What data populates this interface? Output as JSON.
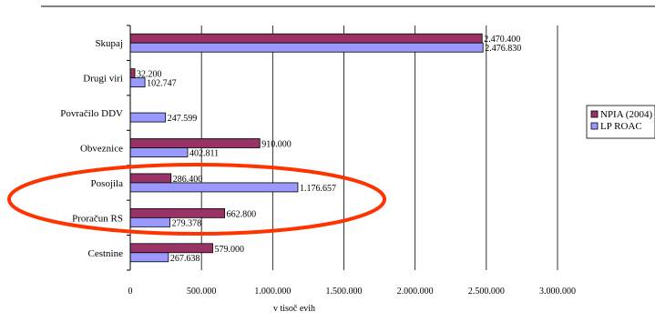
{
  "chart_data": {
    "type": "bar",
    "orientation": "horizontal",
    "categories": [
      "Skupaj",
      "Drugi viri",
      "Povračilo DDV",
      "Obveznice",
      "Posojila",
      "Proračun RS",
      "Cestnine"
    ],
    "series": [
      {
        "name": "NPIA (2004)",
        "color": "#993366",
        "values": [
          2470400,
          32200,
          null,
          910000,
          286400,
          662800,
          579000
        ],
        "labels": [
          "2.470.400",
          "32.200",
          "",
          "910.000",
          "286.400",
          "662.800",
          "579.000"
        ]
      },
      {
        "name": "LP ROAC",
        "color": "#9999ff",
        "values": [
          2476830,
          102747,
          247599,
          402811,
          1176657,
          279378,
          267638
        ],
        "labels": [
          "2.476.830",
          "102.747",
          "247.599",
          "402.811",
          "1.176.657",
          "279.378",
          "267.638"
        ]
      }
    ],
    "xlim": [
      0,
      3000000
    ],
    "x_ticks": [
      0,
      500000,
      1000000,
      1500000,
      2000000,
      2500000,
      3000000
    ],
    "x_tick_labels": [
      "0",
      "500.000",
      "1.000.000",
      "1.500.000",
      "2.000.000",
      "2.500.000",
      "3.000.000"
    ],
    "xlabel": "v tisoč evih",
    "title": "",
    "grid": "vertical",
    "legend_position": "right",
    "highlight": {
      "shape": "ellipse",
      "color": "#ff3300",
      "categories": [
        "Posojila",
        "Proračun RS"
      ]
    }
  }
}
